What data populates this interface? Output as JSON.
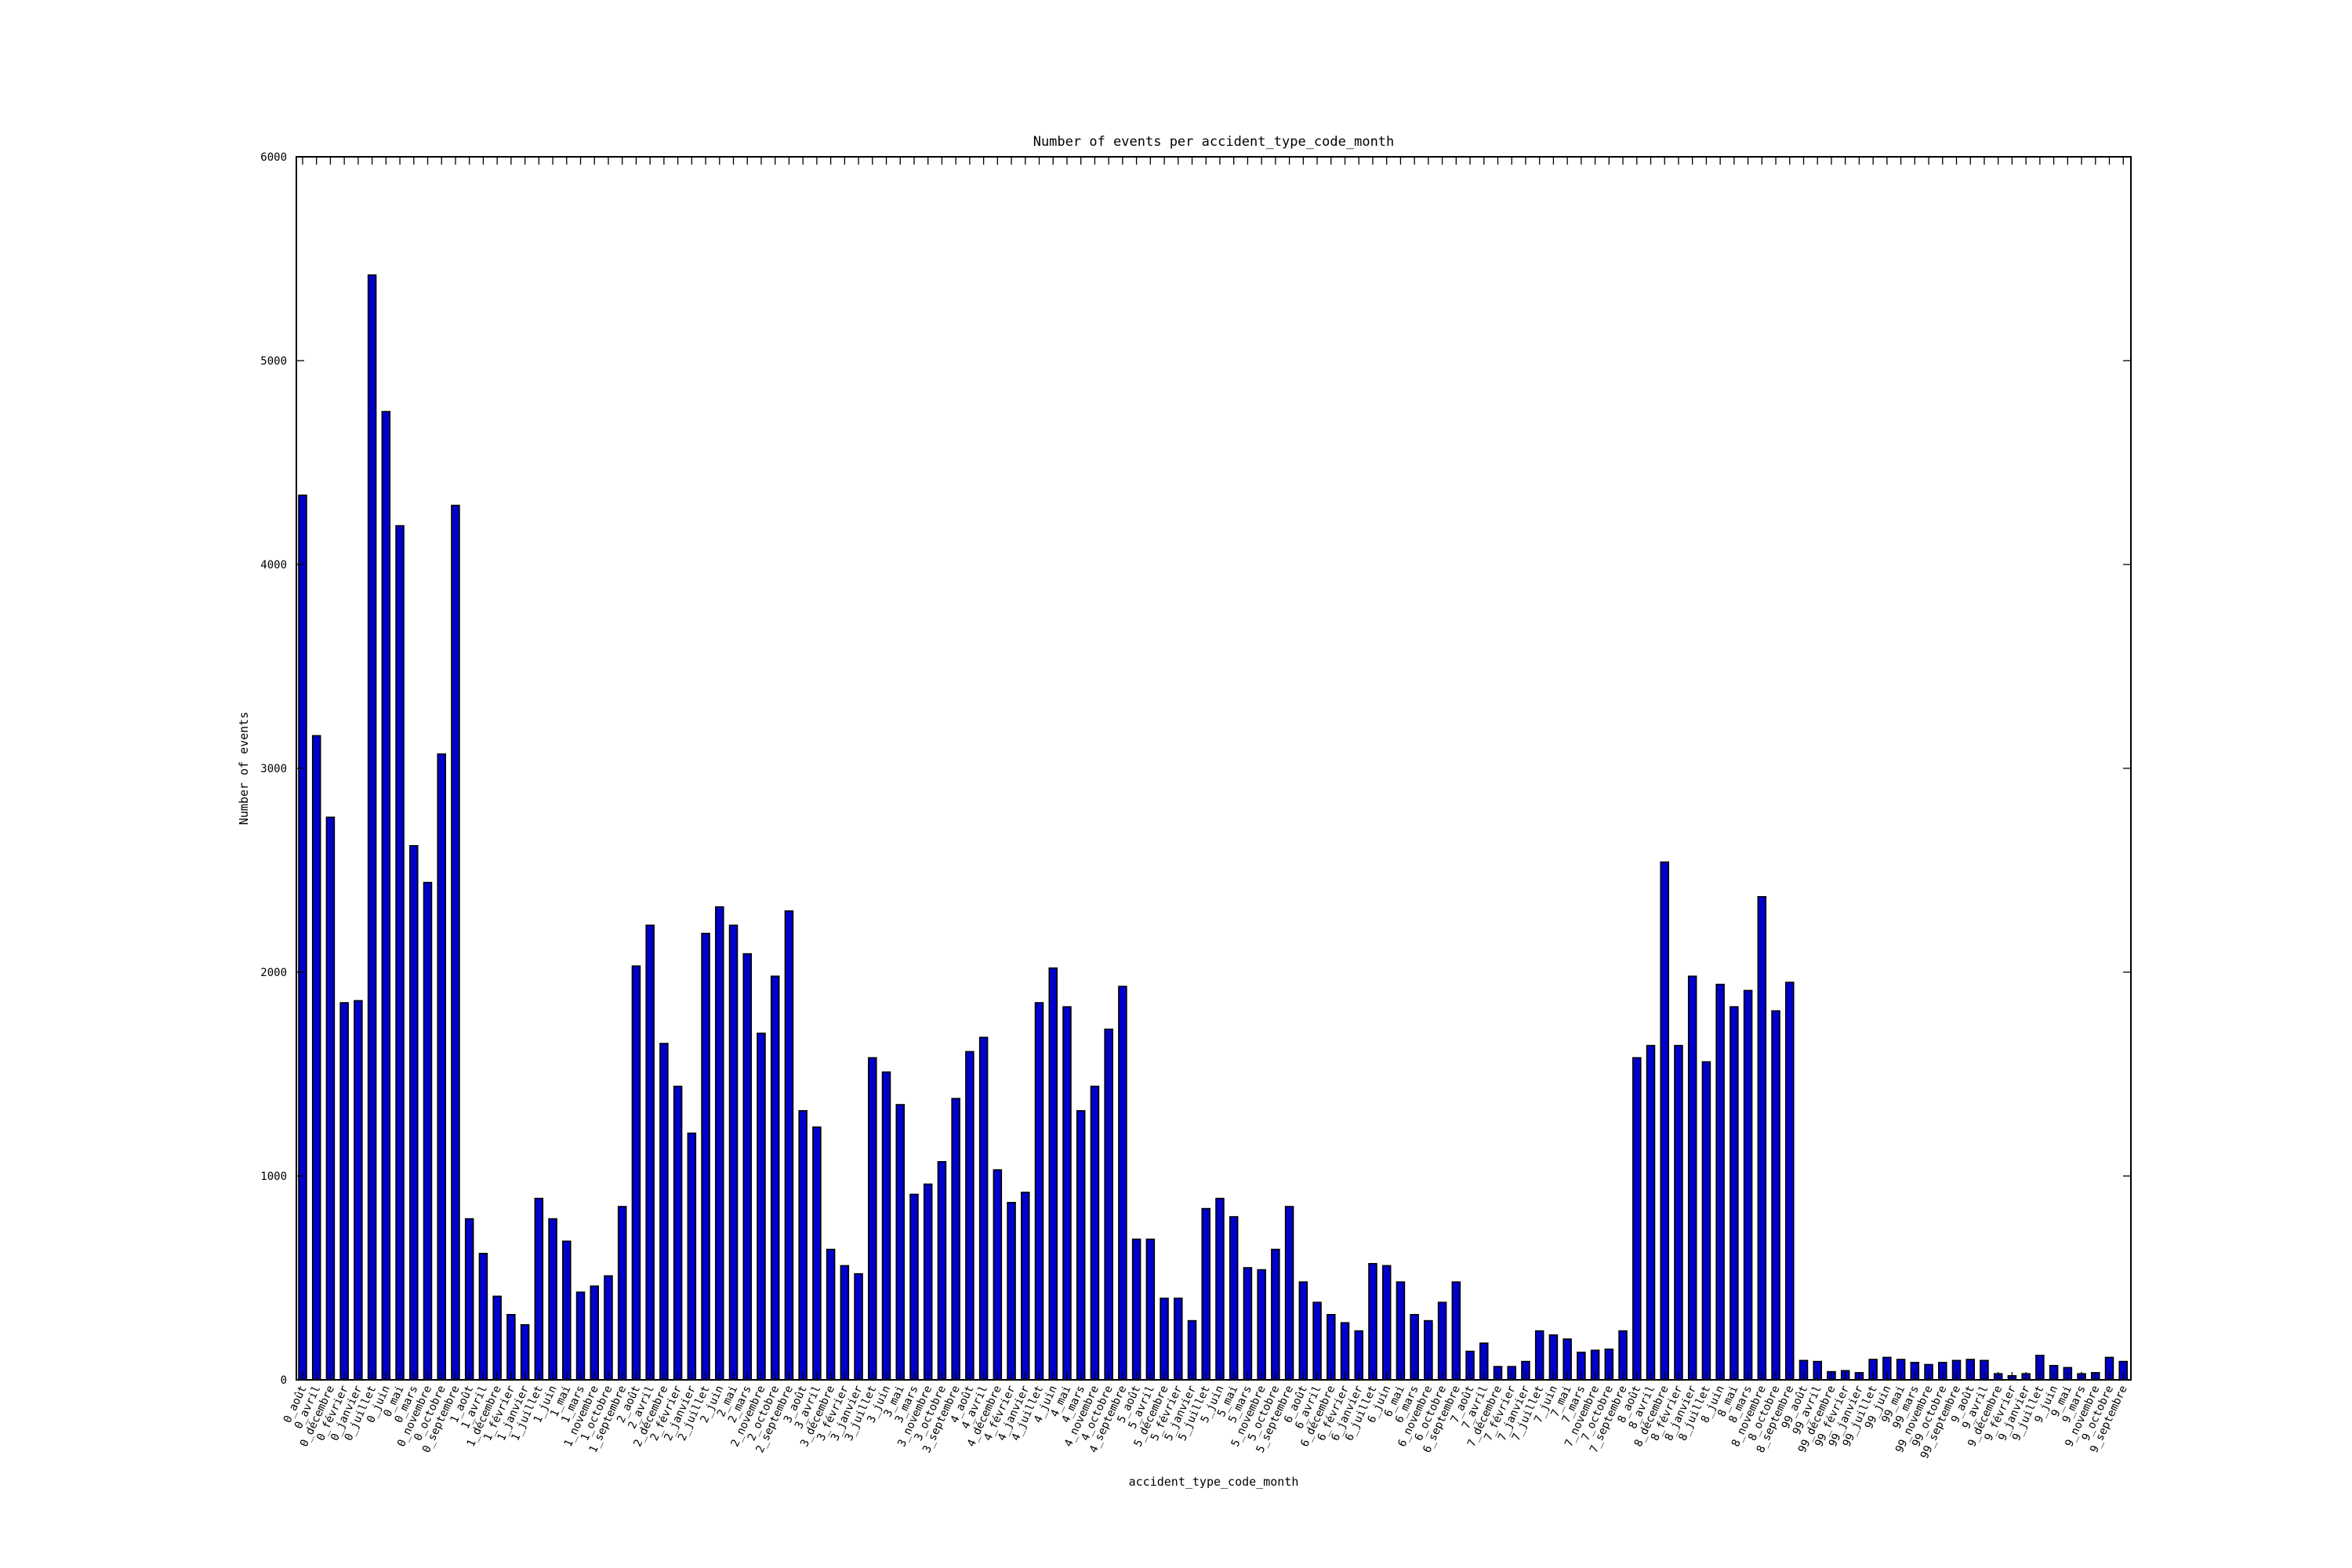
{
  "chart_data": {
    "type": "bar",
    "title": "Number of events per accident_type_code_month",
    "xlabel": "accident_type_code_month",
    "ylabel": "Number of events",
    "ylim": [
      0,
      6000
    ],
    "yticks": [
      0,
      1000,
      2000,
      3000,
      4000,
      5000,
      6000
    ],
    "grid": false,
    "bar_color": "#0000cc",
    "categories": [
      "0_août",
      "0_avril",
      "0_décembre",
      "0_février",
      "0_janvier",
      "0_juillet",
      "0_juin",
      "0_mai",
      "0_mars",
      "0_novembre",
      "0_octobre",
      "0_septembre",
      "1_août",
      "1_avril",
      "1_décembre",
      "1_février",
      "1_janvier",
      "1_juillet",
      "1_juin",
      "1_mai",
      "1_mars",
      "1_novembre",
      "1_octobre",
      "1_septembre",
      "2_août",
      "2_avril",
      "2_décembre",
      "2_février",
      "2_janvier",
      "2_juillet",
      "2_juin",
      "2_mai",
      "2_mars",
      "2_novembre",
      "2_octobre",
      "2_septembre",
      "3_août",
      "3_avril",
      "3_décembre",
      "3_février",
      "3_janvier",
      "3_juillet",
      "3_juin",
      "3_mai",
      "3_mars",
      "3_novembre",
      "3_octobre",
      "3_septembre",
      "4_août",
      "4_avril",
      "4_décembre",
      "4_février",
      "4_janvier",
      "4_juillet",
      "4_juin",
      "4_mai",
      "4_mars",
      "4_novembre",
      "4_octobre",
      "4_septembre",
      "5_août",
      "5_avril",
      "5_décembre",
      "5_février",
      "5_janvier",
      "5_juillet",
      "5_juin",
      "5_mai",
      "5_mars",
      "5_novembre",
      "5_octobre",
      "5_septembre",
      "6_août",
      "6_avril",
      "6_décembre",
      "6_février",
      "6_janvier",
      "6_juillet",
      "6_juin",
      "6_mai",
      "6_mars",
      "6_novembre",
      "6_octobre",
      "6_septembre",
      "7_août",
      "7_avril",
      "7_décembre",
      "7_février",
      "7_janvier",
      "7_juillet",
      "7_juin",
      "7_mai",
      "7_mars",
      "7_novembre",
      "7_octobre",
      "7_septembre",
      "8_août",
      "8_avril",
      "8_décembre",
      "8_février",
      "8_janvier",
      "8_juillet",
      "8_juin",
      "8_mai",
      "8_mars",
      "8_novembre",
      "8_octobre",
      "8_septembre",
      "99_août",
      "99_avril",
      "99_décembre",
      "99_février",
      "99_janvier",
      "99_juillet",
      "99_juin",
      "99_mai",
      "99_mars",
      "99_novembre",
      "99_octobre",
      "99_septembre",
      "9_août",
      "9_avril",
      "9_décembre",
      "9_février",
      "9_janvier",
      "9_juillet",
      "9_juin",
      "9_mai",
      "9_mars",
      "9_novembre",
      "9_octobre",
      "9_septembre"
    ],
    "values": [
      4340,
      3160,
      2760,
      1850,
      1860,
      5420,
      4750,
      4190,
      2620,
      2440,
      3070,
      4290,
      790,
      620,
      410,
      320,
      270,
      890,
      790,
      680,
      430,
      460,
      510,
      850,
      2030,
      2230,
      1650,
      1440,
      1210,
      2190,
      2320,
      2230,
      2090,
      1700,
      1980,
      2300,
      1320,
      1240,
      640,
      560,
      520,
      1580,
      1510,
      1350,
      910,
      960,
      1070,
      1380,
      1610,
      1680,
      1030,
      870,
      920,
      1850,
      2020,
      1830,
      1320,
      1440,
      1720,
      1930,
      690,
      690,
      400,
      400,
      290,
      840,
      890,
      800,
      550,
      540,
      640,
      850,
      480,
      380,
      320,
      280,
      240,
      570,
      560,
      480,
      320,
      290,
      380,
      480,
      140,
      180,
      65,
      65,
      90,
      240,
      220,
      200,
      135,
      145,
      150,
      240,
      1580,
      1640,
      2540,
      1640,
      1980,
      1560,
      1940,
      1830,
      1910,
      2370,
      1810,
      1950,
      95,
      90,
      40,
      45,
      35,
      100,
      110,
      100,
      85,
      75,
      85,
      95,
      100,
      95,
      30,
      20,
      30,
      120,
      70,
      60,
      30,
      35,
      110,
      90
    ]
  }
}
